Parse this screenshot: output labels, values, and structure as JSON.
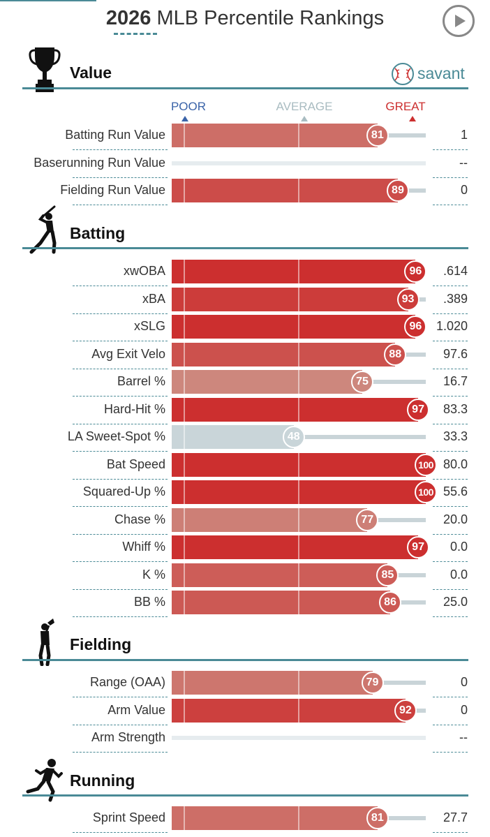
{
  "header": {
    "year": "2026",
    "title_rest": "MLB Percentile Rankings",
    "play_icon": "play-icon"
  },
  "brand": {
    "name": "savant",
    "icon": "baseball-icon",
    "color": "#4a8a96"
  },
  "legend": {
    "poor": "POOR",
    "average": "AVERAGE",
    "great": "GREAT",
    "poor_color": "#3a63a8",
    "average_color": "#a9bcc1",
    "great_color": "#cc2f2f"
  },
  "sections": [
    {
      "key": "value",
      "title": "Value",
      "icon": "trophy-icon"
    },
    {
      "key": "batting",
      "title": "Batting",
      "icon": "batter-icon"
    },
    {
      "key": "fielding",
      "title": "Fielding",
      "icon": "fielder-icon"
    },
    {
      "key": "running",
      "title": "Running",
      "icon": "runner-icon"
    }
  ],
  "chart_data": {
    "type": "bar",
    "orientation": "horizontal",
    "xlim": [
      0,
      100
    ],
    "groups": [
      {
        "name": "Value",
        "rows": [
          {
            "label": "Batting Run Value",
            "percentile": 81,
            "value": "1"
          },
          {
            "label": "Baserunning Run Value",
            "percentile": null,
            "value": "--"
          },
          {
            "label": "Fielding Run Value",
            "percentile": 89,
            "value": "0"
          }
        ]
      },
      {
        "name": "Batting",
        "rows": [
          {
            "label": "xwOBA",
            "percentile": 96,
            "value": ".614"
          },
          {
            "label": "xBA",
            "percentile": 93,
            "value": ".389"
          },
          {
            "label": "xSLG",
            "percentile": 96,
            "value": "1.020"
          },
          {
            "label": "Avg Exit Velo",
            "percentile": 88,
            "value": "97.6"
          },
          {
            "label": "Barrel %",
            "percentile": 75,
            "value": "16.7"
          },
          {
            "label": "Hard-Hit %",
            "percentile": 97,
            "value": "83.3"
          },
          {
            "label": "LA Sweet-Spot %",
            "percentile": 48,
            "value": "33.3"
          },
          {
            "label": "Bat Speed",
            "percentile": 100,
            "value": "80.0"
          },
          {
            "label": "Squared-Up %",
            "percentile": 100,
            "value": "55.6"
          },
          {
            "label": "Chase %",
            "percentile": 77,
            "value": "20.0"
          },
          {
            "label": "Whiff %",
            "percentile": 97,
            "value": "0.0"
          },
          {
            "label": "K %",
            "percentile": 85,
            "value": "0.0"
          },
          {
            "label": "BB %",
            "percentile": 86,
            "value": "25.0"
          }
        ]
      },
      {
        "name": "Fielding",
        "rows": [
          {
            "label": "Range (OAA)",
            "percentile": 79,
            "value": "0"
          },
          {
            "label": "Arm Value",
            "percentile": 92,
            "value": "0"
          },
          {
            "label": "Arm Strength",
            "percentile": null,
            "value": "--"
          }
        ]
      },
      {
        "name": "Running",
        "rows": [
          {
            "label": "Sprint Speed",
            "percentile": 81,
            "value": "27.7"
          }
        ]
      }
    ]
  }
}
